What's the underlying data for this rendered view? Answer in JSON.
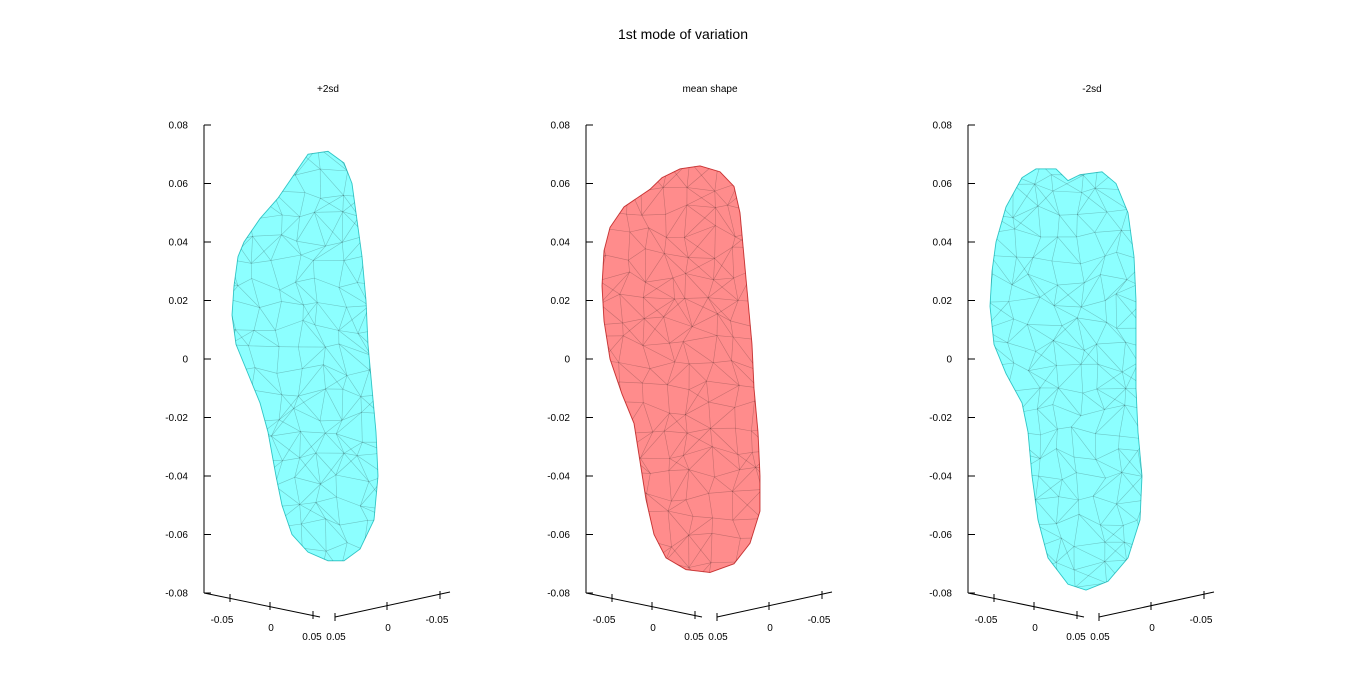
{
  "figure": {
    "title": "1st mode of variation"
  },
  "colors": {
    "plus_minus": "#00ffff",
    "mean": "#ff0000",
    "edge": "#000000",
    "axis": "#000000"
  },
  "chart_data": [
    {
      "type": "mesh3d",
      "title": "+2sd",
      "face_color": "#00ffff",
      "ylim": [
        -0.08,
        0.08
      ],
      "yticks": [
        "0.08",
        "0.06",
        "0.04",
        "0.02",
        "0",
        "-0.02",
        "-0.04",
        "-0.06",
        "-0.08"
      ],
      "xticks_left": [
        "-0.05",
        "0",
        "0.05"
      ],
      "xticks_right": [
        "0.05",
        "0",
        "-0.05"
      ],
      "outline": [
        [
          -0.01,
          0.07
        ],
        [
          0.0,
          0.071
        ],
        [
          0.008,
          0.067
        ],
        [
          0.012,
          0.06
        ],
        [
          0.014,
          0.05
        ],
        [
          0.017,
          0.035
        ],
        [
          0.019,
          0.02
        ],
        [
          0.02,
          0.005
        ],
        [
          0.022,
          -0.01
        ],
        [
          0.024,
          -0.025
        ],
        [
          0.025,
          -0.04
        ],
        [
          0.023,
          -0.055
        ],
        [
          0.016,
          -0.065
        ],
        [
          0.008,
          -0.069
        ],
        [
          0.0,
          -0.069
        ],
        [
          -0.01,
          -0.066
        ],
        [
          -0.018,
          -0.06
        ],
        [
          -0.023,
          -0.05
        ],
        [
          -0.026,
          -0.04
        ],
        [
          -0.03,
          -0.025
        ],
        [
          -0.034,
          -0.015
        ],
        [
          -0.04,
          -0.005
        ],
        [
          -0.046,
          0.005
        ],
        [
          -0.048,
          0.015
        ],
        [
          -0.047,
          0.025
        ],
        [
          -0.045,
          0.035
        ],
        [
          -0.042,
          0.04
        ],
        [
          -0.034,
          0.048
        ],
        [
          -0.025,
          0.055
        ],
        [
          -0.017,
          0.063
        ]
      ]
    },
    {
      "type": "mesh3d",
      "title": "mean shape",
      "face_color": "#ff0000",
      "ylim": [
        -0.08,
        0.08
      ],
      "yticks": [
        "0.08",
        "0.06",
        "0.04",
        "0.02",
        "0",
        "-0.02",
        "-0.04",
        "-0.06",
        "-0.08"
      ],
      "xticks_left": [
        "-0.05",
        "0",
        "0.05"
      ],
      "xticks_right": [
        "0.05",
        "0",
        "-0.05"
      ],
      "outline": [
        [
          -0.03,
          0.058
        ],
        [
          -0.024,
          0.062
        ],
        [
          -0.015,
          0.065
        ],
        [
          -0.005,
          0.066
        ],
        [
          0.005,
          0.064
        ],
        [
          0.012,
          0.059
        ],
        [
          0.015,
          0.05
        ],
        [
          0.017,
          0.035
        ],
        [
          0.019,
          0.02
        ],
        [
          0.021,
          0.005
        ],
        [
          0.022,
          -0.01
        ],
        [
          0.024,
          -0.025
        ],
        [
          0.025,
          -0.04
        ],
        [
          0.025,
          -0.052
        ],
        [
          0.02,
          -0.063
        ],
        [
          0.012,
          -0.07
        ],
        [
          0.0,
          -0.073
        ],
        [
          -0.012,
          -0.072
        ],
        [
          -0.022,
          -0.068
        ],
        [
          -0.028,
          -0.06
        ],
        [
          -0.032,
          -0.048
        ],
        [
          -0.035,
          -0.035
        ],
        [
          -0.038,
          -0.022
        ],
        [
          -0.044,
          -0.012
        ],
        [
          -0.05,
          0.0
        ],
        [
          -0.053,
          0.013
        ],
        [
          -0.054,
          0.025
        ],
        [
          -0.053,
          0.037
        ],
        [
          -0.05,
          0.045
        ],
        [
          -0.043,
          0.052
        ]
      ]
    },
    {
      "type": "mesh3d",
      "title": "-2sd",
      "face_color": "#00ffff",
      "ylim": [
        -0.08,
        0.08
      ],
      "yticks": [
        "0.08",
        "0.06",
        "0.04",
        "0.02",
        "0",
        "-0.02",
        "-0.04",
        "-0.06",
        "-0.08"
      ],
      "xticks_left": [
        "-0.05",
        "0",
        "0.05"
      ],
      "xticks_right": [
        "0.05",
        "0",
        "-0.05"
      ],
      "outline": [
        [
          -0.035,
          0.062
        ],
        [
          -0.028,
          0.065
        ],
        [
          -0.018,
          0.065
        ],
        [
          -0.012,
          0.061
        ],
        [
          -0.006,
          0.063
        ],
        [
          0.005,
          0.064
        ],
        [
          0.012,
          0.06
        ],
        [
          0.018,
          0.05
        ],
        [
          0.021,
          0.035
        ],
        [
          0.022,
          0.02
        ],
        [
          0.022,
          0.005
        ],
        [
          0.022,
          -0.01
        ],
        [
          0.023,
          -0.025
        ],
        [
          0.025,
          -0.04
        ],
        [
          0.024,
          -0.055
        ],
        [
          0.018,
          -0.068
        ],
        [
          0.008,
          -0.076
        ],
        [
          -0.003,
          -0.079
        ],
        [
          -0.012,
          -0.077
        ],
        [
          -0.022,
          -0.068
        ],
        [
          -0.027,
          -0.055
        ],
        [
          -0.03,
          -0.04
        ],
        [
          -0.032,
          -0.025
        ],
        [
          -0.035,
          -0.015
        ],
        [
          -0.043,
          -0.005
        ],
        [
          -0.049,
          0.005
        ],
        [
          -0.051,
          0.018
        ],
        [
          -0.05,
          0.03
        ],
        [
          -0.048,
          0.04
        ],
        [
          -0.043,
          0.052
        ]
      ]
    }
  ]
}
